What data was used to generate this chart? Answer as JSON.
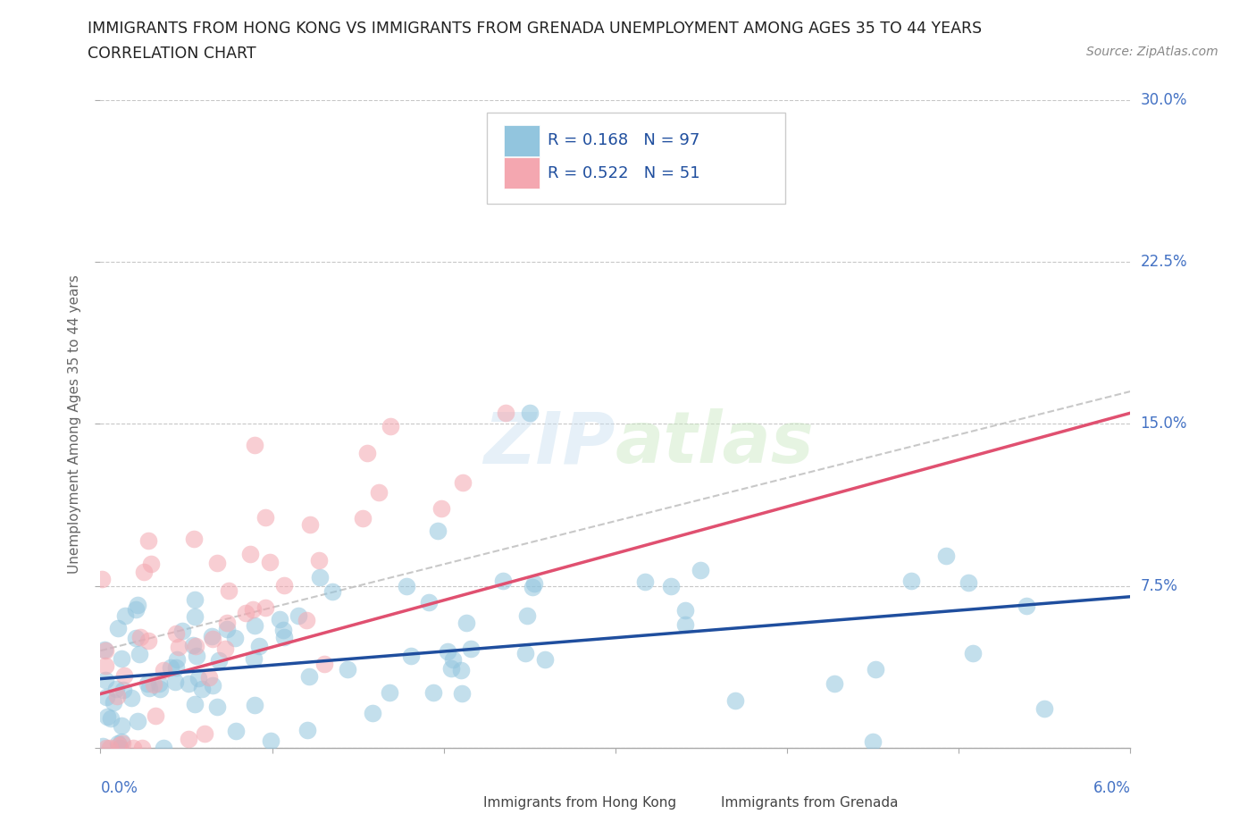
{
  "title_line1": "IMMIGRANTS FROM HONG KONG VS IMMIGRANTS FROM GRENADA UNEMPLOYMENT AMONG AGES 35 TO 44 YEARS",
  "title_line2": "CORRELATION CHART",
  "source_text": "Source: ZipAtlas.com",
  "ylabel": "Unemployment Among Ages 35 to 44 years",
  "xlim": [
    0.0,
    0.06
  ],
  "ylim": [
    0.0,
    0.3
  ],
  "xticks": [
    0.0,
    0.01,
    0.02,
    0.03,
    0.04,
    0.05,
    0.06
  ],
  "yticks": [
    0.0,
    0.075,
    0.15,
    0.225,
    0.3
  ],
  "yticklabels_right": [
    "",
    "7.5%",
    "15.0%",
    "22.5%",
    "30.0%"
  ],
  "hk_color": "#92C5DE",
  "grenada_color": "#F4A7B0",
  "hk_line_color": "#1F4E9E",
  "grenada_line_color": "#E05070",
  "hk_R": 0.168,
  "hk_N": 97,
  "grenada_R": 0.522,
  "grenada_N": 51,
  "watermark_text": "ZIPatlas",
  "background_color": "#ffffff",
  "grid_color": "#c8c8c8",
  "tick_label_color": "#4472C4",
  "legend_text_color": "#1F4E9E",
  "title_color": "#222222",
  "source_color": "#888888",
  "ylabel_color": "#666666",
  "bottom_legend_color": "#444444"
}
